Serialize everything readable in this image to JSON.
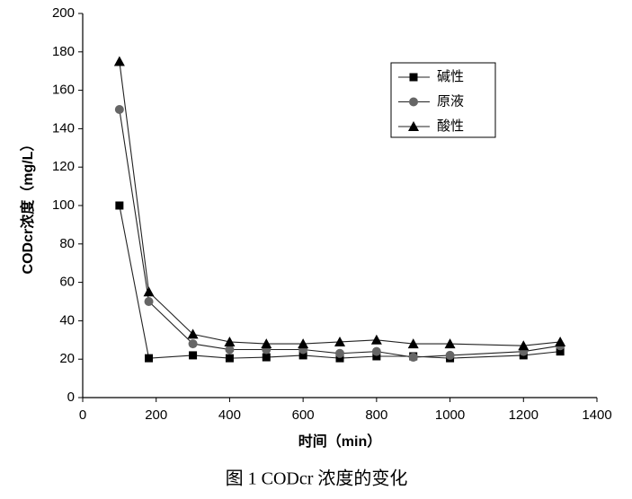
{
  "chart_data": {
    "type": "line",
    "x": [
      100,
      180,
      300,
      400,
      500,
      600,
      700,
      800,
      900,
      1000,
      1200,
      1300
    ],
    "series": [
      {
        "name": "碱性",
        "color": "#000000",
        "marker": "square",
        "values": [
          100,
          20.5,
          22,
          20.5,
          21,
          22,
          20.5,
          21.5,
          21.5,
          20.5,
          22,
          24
        ]
      },
      {
        "name": "原液",
        "color": "#666666",
        "marker": "circle",
        "values": [
          150,
          50,
          28,
          25,
          25,
          25,
          23,
          24,
          21,
          22,
          24,
          27
        ]
      },
      {
        "name": "酸性",
        "color": "#000000",
        "marker": "triangle",
        "values": [
          175,
          55,
          33,
          29,
          28,
          28,
          29,
          30,
          28,
          28,
          27,
          29
        ]
      }
    ],
    "xlim": [
      0,
      1400
    ],
    "xticks": [
      0,
      200,
      400,
      600,
      800,
      1000,
      1200,
      1400
    ],
    "ylim": [
      0,
      200
    ],
    "yticks": [
      0,
      20,
      40,
      60,
      80,
      100,
      120,
      140,
      160,
      180,
      200
    ],
    "x_label": "时间（min）",
    "y_label": "CODcr浓度（mg/L）",
    "caption": "图 1 CODcr 浓度的变化",
    "legend": "upper right"
  }
}
